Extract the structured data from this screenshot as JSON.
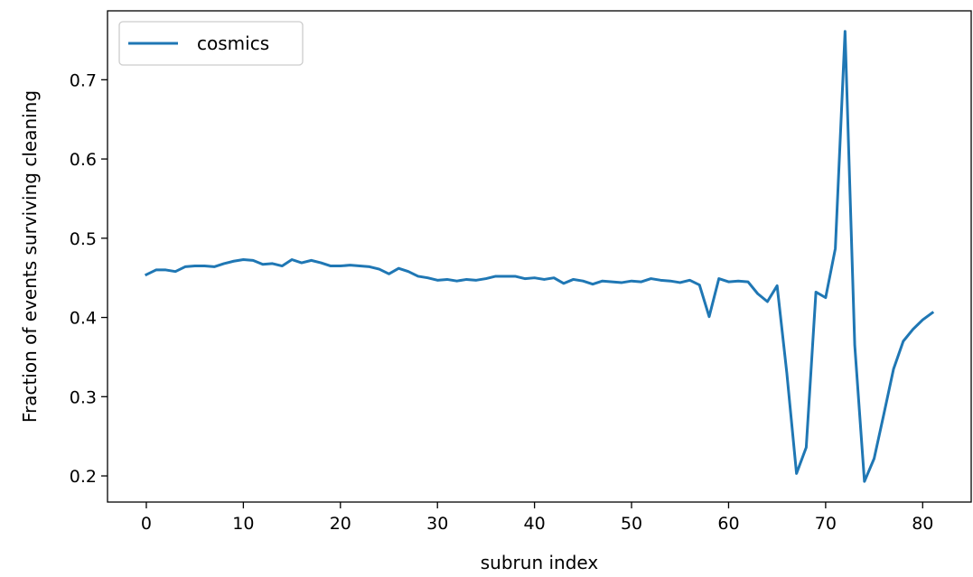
{
  "chart_data": {
    "type": "line",
    "xlabel": "subrun index",
    "ylabel": "Fraction of events surviving cleaning",
    "xlim": [
      -4,
      85
    ],
    "ylim": [
      0.167,
      0.787
    ],
    "xticks": [
      0,
      10,
      20,
      30,
      40,
      50,
      60,
      70,
      80
    ],
    "yticks": [
      0.2,
      0.3,
      0.4,
      0.5,
      0.6,
      0.7
    ],
    "grid": false,
    "legend": {
      "position": "top-left"
    },
    "series": [
      {
        "name": "cosmics",
        "color": "#1f77b4",
        "x": [
          0,
          1,
          2,
          3,
          4,
          5,
          6,
          7,
          8,
          9,
          10,
          11,
          12,
          13,
          14,
          15,
          16,
          17,
          18,
          19,
          20,
          21,
          22,
          23,
          24,
          25,
          26,
          27,
          28,
          29,
          30,
          31,
          32,
          33,
          34,
          35,
          36,
          37,
          38,
          39,
          40,
          41,
          42,
          43,
          44,
          45,
          46,
          47,
          48,
          49,
          50,
          51,
          52,
          53,
          54,
          55,
          56,
          57,
          58,
          59,
          60,
          61,
          62,
          63,
          64,
          65,
          66,
          67,
          68,
          69,
          70,
          71,
          72,
          73,
          74,
          75,
          76,
          77,
          78,
          79,
          80,
          81
        ],
        "values": [
          0.454,
          0.46,
          0.46,
          0.458,
          0.464,
          0.465,
          0.465,
          0.464,
          0.468,
          0.471,
          0.473,
          0.472,
          0.467,
          0.468,
          0.465,
          0.473,
          0.469,
          0.472,
          0.469,
          0.465,
          0.465,
          0.466,
          0.465,
          0.464,
          0.461,
          0.455,
          0.462,
          0.458,
          0.452,
          0.45,
          0.447,
          0.448,
          0.446,
          0.448,
          0.447,
          0.449,
          0.452,
          0.452,
          0.452,
          0.449,
          0.45,
          0.448,
          0.45,
          0.443,
          0.448,
          0.446,
          0.442,
          0.446,
          0.445,
          0.444,
          0.446,
          0.445,
          0.449,
          0.447,
          0.446,
          0.444,
          0.447,
          0.441,
          0.401,
          0.449,
          0.445,
          0.446,
          0.445,
          0.43,
          0.42,
          0.44,
          0.33,
          0.203,
          0.236,
          0.432,
          0.425,
          0.487,
          0.761,
          0.365,
          0.193,
          0.222,
          0.278,
          0.335,
          0.37,
          0.385,
          0.397,
          0.406
        ]
      }
    ]
  }
}
